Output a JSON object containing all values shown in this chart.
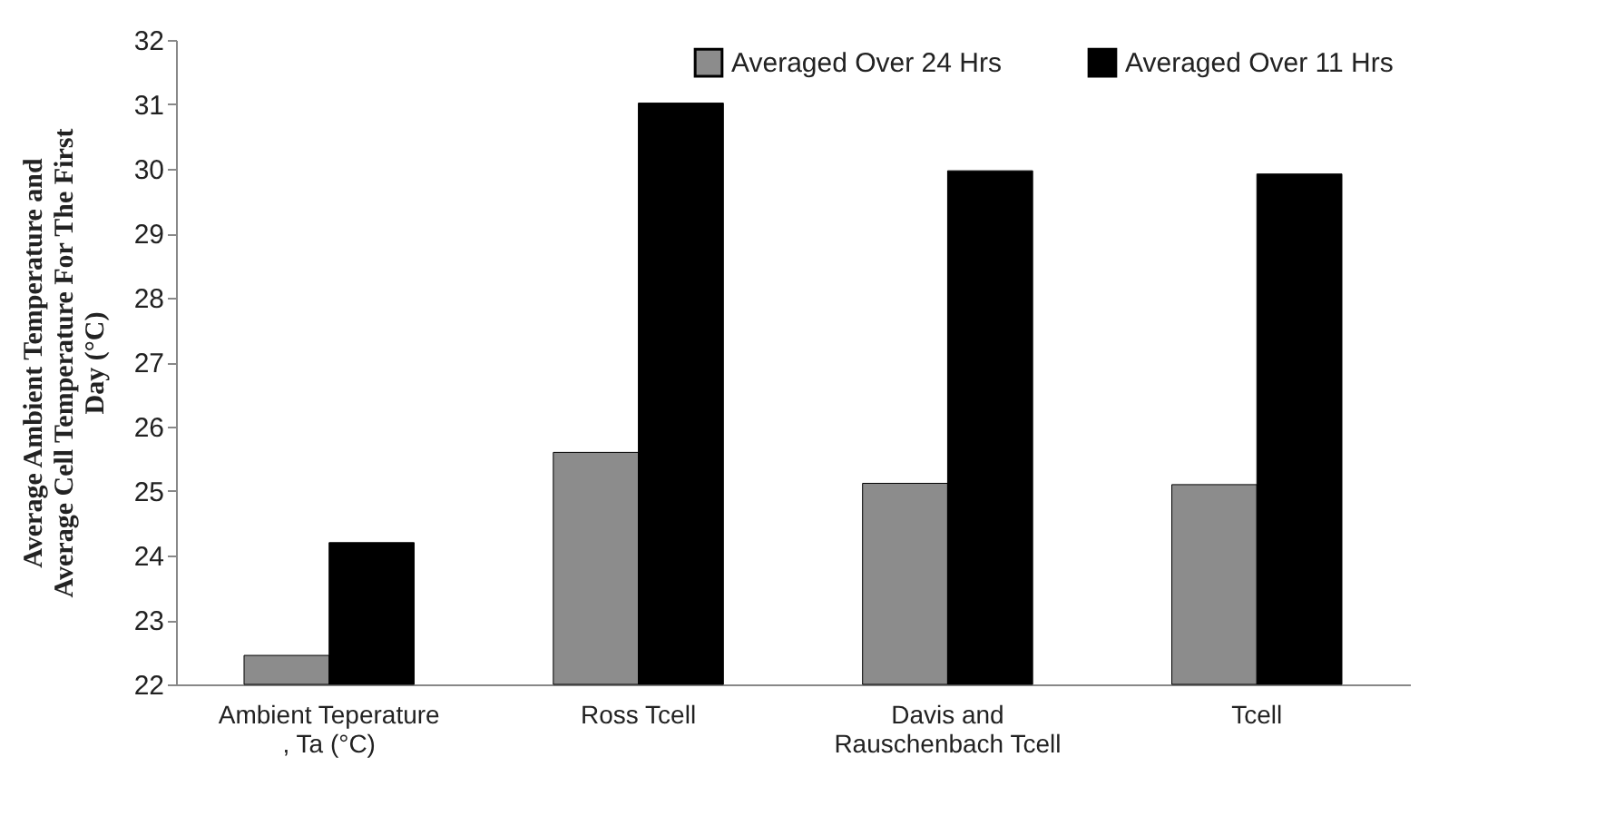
{
  "chart_data": {
    "type": "bar",
    "ylabel": "Average Ambient Temperature and\nAverage Cell Temperature For The First\nDay  (°C)",
    "categories": [
      "Ambient Teperature\n, Ta (°C)",
      "Ross  Tcell",
      "Davis and\nRauschenbach   Tcell",
      "Tcell"
    ],
    "series": [
      {
        "name": "Averaged  Over 24 Hrs",
        "color": "#8c8c8c",
        "values": [
          22.45,
          25.6,
          25.12,
          25.1
        ]
      },
      {
        "name": "Averaged  Over 11 Hrs",
        "color": "#000000",
        "values": [
          24.2,
          31.02,
          29.97,
          29.92
        ]
      }
    ],
    "ylim": [
      22,
      32
    ],
    "yticks": [
      22,
      23,
      24,
      25,
      26,
      27,
      28,
      29,
      30,
      31,
      32
    ],
    "grid": false,
    "legend": "top right"
  }
}
